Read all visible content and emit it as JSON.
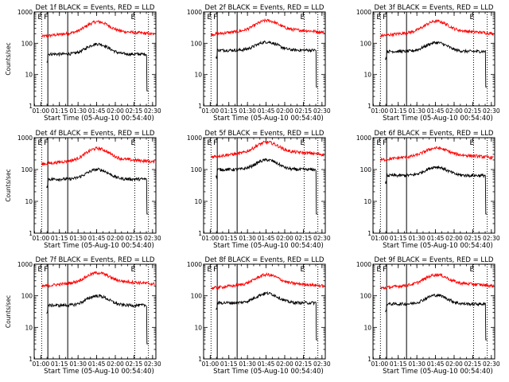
{
  "chart_data": [
    {
      "type": "line",
      "title": "Det 1f BLACK = Events, RED = LLD",
      "xlabel": "Start Time (05-Aug-10 00:54:40)",
      "ylabel": "Counts/sec",
      "ylog": true,
      "ylim": [
        1,
        1000
      ],
      "yticks": [
        "1",
        "10",
        "100",
        "1000"
      ],
      "xticks": [
        "01:00",
        "01:15",
        "01:30",
        "01:45",
        "02:00",
        "02:15",
        "02:30"
      ],
      "xlim": [
        0,
        98
      ],
      "markers": [
        {
          "label": "E",
          "x": 6
        },
        {
          "label": "F",
          "x": 11
        },
        {
          "label": "E",
          "x": 81
        }
      ],
      "solid_lines": [
        11,
        27
      ],
      "dotted_lines": [
        6,
        81,
        92
      ],
      "series": [
        {
          "color": "#ff0000",
          "base": 190,
          "peak": 440,
          "peak_x": 51,
          "width": 11,
          "start": 6,
          "end": 97
        },
        {
          "color": "#000000",
          "base": 45,
          "peak": 95,
          "peak_x": 51,
          "width": 11,
          "start": 10,
          "end": 92,
          "dropout": 3
        }
      ]
    },
    {
      "type": "line",
      "title": "Det 2f BLACK = Events, RED = LLD",
      "xlabel": "Start Time (05-Aug-10 00:54:40)",
      "ylabel": "",
      "ylog": true,
      "ylim": [
        1,
        1000
      ],
      "yticks": [
        "1",
        "10",
        "100",
        "1000"
      ],
      "xticks": [
        "01:00",
        "01:15",
        "01:30",
        "01:45",
        "02:00",
        "02:15",
        "02:30"
      ],
      "xlim": [
        0,
        98
      ],
      "markers": [
        {
          "label": "E",
          "x": 6
        },
        {
          "label": "F",
          "x": 11
        },
        {
          "label": "E",
          "x": 81
        }
      ],
      "solid_lines": [
        11,
        27
      ],
      "dotted_lines": [
        6,
        81,
        92
      ],
      "series": [
        {
          "color": "#ff0000",
          "base": 220,
          "peak": 480,
          "peak_x": 51,
          "width": 11,
          "start": 6,
          "end": 97
        },
        {
          "color": "#000000",
          "base": 60,
          "peak": 110,
          "peak_x": 51,
          "width": 11,
          "start": 10,
          "end": 92,
          "dropout": 4
        }
      ]
    },
    {
      "type": "line",
      "title": "Det 3f BLACK = Events, RED = LLD",
      "xlabel": "Start Time (05-Aug-10 00:54:40)",
      "ylabel": "",
      "ylog": true,
      "ylim": [
        1,
        1000
      ],
      "yticks": [
        "1",
        "10",
        "100",
        "1000"
      ],
      "xticks": [
        "01:00",
        "01:15",
        "01:30",
        "01:45",
        "02:00",
        "02:15",
        "02:30"
      ],
      "xlim": [
        0,
        98
      ],
      "markers": [
        {
          "label": "E",
          "x": 6
        },
        {
          "label": "F",
          "x": 11
        },
        {
          "label": "E",
          "x": 81
        }
      ],
      "solid_lines": [
        11,
        27
      ],
      "dotted_lines": [
        6,
        81,
        92
      ],
      "series": [
        {
          "color": "#ff0000",
          "base": 200,
          "peak": 460,
          "peak_x": 51,
          "width": 11,
          "start": 6,
          "end": 97
        },
        {
          "color": "#000000",
          "base": 55,
          "peak": 105,
          "peak_x": 51,
          "width": 11,
          "start": 10,
          "end": 92,
          "dropout": 4
        }
      ]
    },
    {
      "type": "line",
      "title": "Det 4f BLACK = Events, RED = LLD",
      "xlabel": "Start Time (05-Aug-10 00:54:40)",
      "ylabel": "Counts/sec",
      "ylog": true,
      "ylim": [
        1,
        1000
      ],
      "yticks": [
        "1",
        "10",
        "100",
        "1000"
      ],
      "xticks": [
        "01:00",
        "01:15",
        "01:30",
        "01:45",
        "02:00",
        "02:15",
        "02:30"
      ],
      "xlim": [
        0,
        98
      ],
      "markers": [
        {
          "label": "E",
          "x": 6
        },
        {
          "label": "F",
          "x": 11
        },
        {
          "label": "E",
          "x": 81
        }
      ],
      "solid_lines": [
        11,
        27
      ],
      "dotted_lines": [
        6,
        81,
        92
      ],
      "series": [
        {
          "color": "#ff0000",
          "base": 170,
          "peak": 420,
          "peak_x": 51,
          "width": 11,
          "start": 6,
          "end": 97
        },
        {
          "color": "#000000",
          "base": 50,
          "peak": 100,
          "peak_x": 51,
          "width": 11,
          "start": 10,
          "end": 92,
          "dropout": 4
        }
      ]
    },
    {
      "type": "line",
      "title": "Det 5f BLACK = Events, RED = LLD",
      "xlabel": "Start Time (05-Aug-10 00:54:40)",
      "ylabel": "",
      "ylog": true,
      "ylim": [
        1,
        1000
      ],
      "yticks": [
        "1",
        "10",
        "100",
        "1000"
      ],
      "xticks": [
        "01:00",
        "01:15",
        "01:30",
        "01:45",
        "02:00",
        "02:15",
        "02:30"
      ],
      "xlim": [
        0,
        98
      ],
      "markers": [
        {
          "label": "E",
          "x": 6
        },
        {
          "label": "F",
          "x": 11
        },
        {
          "label": "E",
          "x": 81
        }
      ],
      "solid_lines": [
        11,
        27
      ],
      "dotted_lines": [
        6,
        81,
        92
      ],
      "series": [
        {
          "color": "#ff0000",
          "base": 290,
          "peak": 650,
          "peak_x": 51,
          "width": 11,
          "start": 6,
          "end": 97
        },
        {
          "color": "#000000",
          "base": 100,
          "peak": 200,
          "peak_x": 51,
          "width": 11,
          "start": 10,
          "end": 92,
          "dropout": 4
        }
      ]
    },
    {
      "type": "line",
      "title": "Det 6f BLACK = Events, RED = LLD",
      "xlabel": "Start Time (05-Aug-10 00:54:40)",
      "ylabel": "",
      "ylog": true,
      "ylim": [
        1,
        1000
      ],
      "yticks": [
        "1",
        "10",
        "100",
        "1000"
      ],
      "xticks": [
        "01:00",
        "01:15",
        "01:30",
        "01:45",
        "02:00",
        "02:15",
        "02:30"
      ],
      "xlim": [
        0,
        98
      ],
      "markers": [
        {
          "label": "E",
          "x": 6
        },
        {
          "label": "F",
          "x": 11
        },
        {
          "label": "E",
          "x": 81
        }
      ],
      "solid_lines": [
        11,
        27
      ],
      "dotted_lines": [
        6,
        81,
        92
      ],
      "series": [
        {
          "color": "#ff0000",
          "base": 230,
          "peak": 420,
          "peak_x": 51,
          "width": 11,
          "start": 6,
          "end": 97
        },
        {
          "color": "#000000",
          "base": 65,
          "peak": 120,
          "peak_x": 51,
          "width": 11,
          "start": 10,
          "end": 92,
          "dropout": 4
        }
      ]
    },
    {
      "type": "line",
      "title": "Det 7f BLACK = Events, RED = LLD",
      "xlabel": "Start Time (05-Aug-10 00:54:40)",
      "ylabel": "Counts/sec",
      "ylog": true,
      "ylim": [
        1,
        1000
      ],
      "yticks": [
        "1",
        "10",
        "100",
        "1000"
      ],
      "xticks": [
        "01:00",
        "01:15",
        "01:30",
        "01:45",
        "02:00",
        "02:15",
        "02:30"
      ],
      "xlim": [
        0,
        98
      ],
      "markers": [
        {
          "label": "E",
          "x": 6
        },
        {
          "label": "F",
          "x": 11
        },
        {
          "label": "E",
          "x": 81
        }
      ],
      "solid_lines": [
        11,
        27
      ],
      "dotted_lines": [
        6,
        81,
        92
      ],
      "series": [
        {
          "color": "#ff0000",
          "base": 230,
          "peak": 480,
          "peak_x": 51,
          "width": 11,
          "start": 6,
          "end": 97
        },
        {
          "color": "#000000",
          "base": 50,
          "peak": 100,
          "peak_x": 51,
          "width": 11,
          "start": 10,
          "end": 92,
          "dropout": 3
        }
      ]
    },
    {
      "type": "line",
      "title": "Det 8f BLACK = Events, RED = LLD",
      "xlabel": "Start Time (05-Aug-10 00:54:40)",
      "ylabel": "",
      "ylog": true,
      "ylim": [
        1,
        1000
      ],
      "yticks": [
        "1",
        "10",
        "100",
        "1000"
      ],
      "xticks": [
        "01:00",
        "01:15",
        "01:30",
        "01:45",
        "02:00",
        "02:15",
        "02:30"
      ],
      "xlim": [
        0,
        98
      ],
      "markers": [
        {
          "label": "E",
          "x": 6
        },
        {
          "label": "F",
          "x": 11
        },
        {
          "label": "E",
          "x": 81
        }
      ],
      "solid_lines": [
        11,
        27
      ],
      "dotted_lines": [
        6,
        81,
        92
      ],
      "series": [
        {
          "color": "#ff0000",
          "base": 200,
          "peak": 420,
          "peak_x": 51,
          "width": 11,
          "start": 6,
          "end": 97
        },
        {
          "color": "#000000",
          "base": 60,
          "peak": 120,
          "peak_x": 51,
          "width": 11,
          "start": 10,
          "end": 92,
          "dropout": 4
        }
      ]
    },
    {
      "type": "line",
      "title": "Det 9f BLACK = Events, RED = LLD",
      "xlabel": "Start Time (05-Aug-10 00:54:40)",
      "ylabel": "",
      "ylog": true,
      "ylim": [
        1,
        1000
      ],
      "yticks": [
        "1",
        "10",
        "100",
        "1000"
      ],
      "xticks": [
        "01:00",
        "01:15",
        "01:30",
        "01:45",
        "02:00",
        "02:15",
        "02:30"
      ],
      "xlim": [
        0,
        98
      ],
      "markers": [
        {
          "label": "E",
          "x": 6
        },
        {
          "label": "F",
          "x": 11
        },
        {
          "label": "E",
          "x": 81
        }
      ],
      "solid_lines": [
        11,
        27
      ],
      "dotted_lines": [
        6,
        81,
        92
      ],
      "series": [
        {
          "color": "#ff0000",
          "base": 200,
          "peak": 420,
          "peak_x": 51,
          "width": 11,
          "start": 6,
          "end": 97
        },
        {
          "color": "#000000",
          "base": 55,
          "peak": 105,
          "peak_x": 51,
          "width": 11,
          "start": 10,
          "end": 92,
          "dropout": 4
        }
      ]
    }
  ]
}
